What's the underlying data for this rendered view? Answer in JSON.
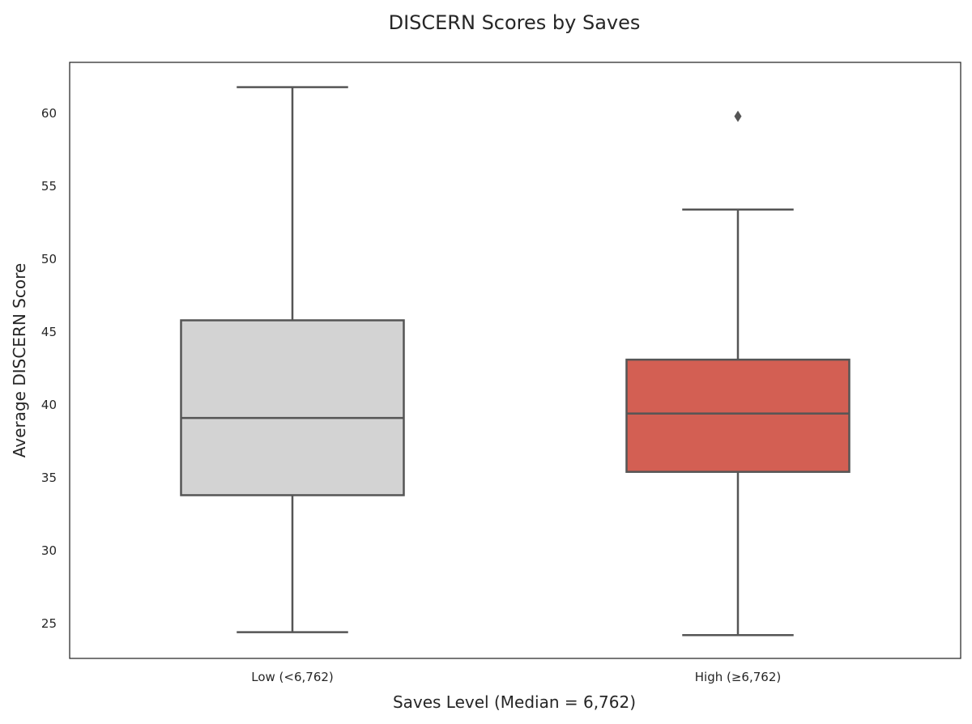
{
  "chart_data": {
    "type": "box",
    "title": "DISCERN Scores by Saves",
    "xlabel": "Saves Level (Median = 6,762)",
    "ylabel": "Average DISCERN Score",
    "categories": [
      "Low (<6,762)",
      "High (≥6,762)"
    ],
    "yticks": [
      25,
      30,
      35,
      40,
      45,
      50,
      55,
      60
    ],
    "ylim": [
      22.6,
      63.5
    ],
    "grid": false,
    "legend": "none",
    "boxes": [
      {
        "category": "Low (<6,762)",
        "whisker_low": 24.4,
        "q1": 33.8,
        "median": 39.1,
        "q3": 45.8,
        "whisker_high": 61.8,
        "outliers": [],
        "color": "#d3d3d3"
      },
      {
        "category": "High (≥6,762)",
        "whisker_low": 24.2,
        "q1": 35.4,
        "median": 39.4,
        "q3": 43.1,
        "whisker_high": 53.4,
        "outliers": [
          59.8
        ],
        "color": "#d35f53"
      }
    ],
    "line_color": "#555555"
  }
}
